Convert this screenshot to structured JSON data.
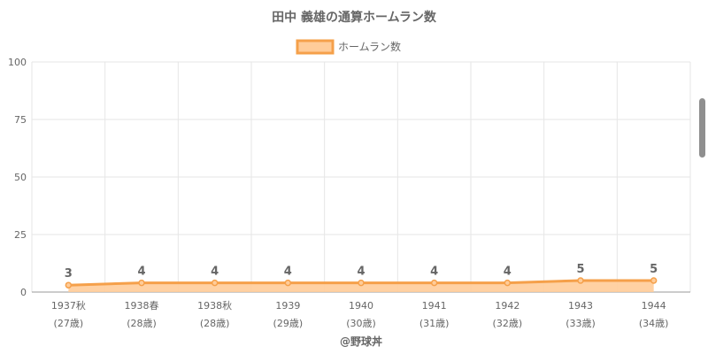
{
  "chart_data": {
    "type": "area",
    "title": "田中 義雄の通算ホームラン数",
    "legend": {
      "label": "ホームラン数",
      "position": "top-center"
    },
    "categories": [
      "1937秋",
      "1938春",
      "1938秋",
      "1939",
      "1940",
      "1941",
      "1942",
      "1943",
      "1944"
    ],
    "ages": [
      "(27歳)",
      "(28歳)",
      "(28歳)",
      "(29歳)",
      "(30歳)",
      "(31歳)",
      "(32歳)",
      "(33歳)",
      "(34歳)"
    ],
    "series": [
      {
        "name": "ホームラン数",
        "values": [
          3,
          4,
          4,
          4,
          4,
          4,
          4,
          5,
          5
        ]
      }
    ],
    "ylim": [
      0,
      100
    ],
    "yticks": [
      0,
      25,
      50,
      75,
      100
    ],
    "ytick_labels": [
      "0",
      "25",
      "50",
      "75",
      "100"
    ],
    "grid": true,
    "colors": {
      "line": "#f5a04a",
      "fill": "#ffcc99",
      "grid": "#e6e6e6",
      "text": "#666666"
    }
  },
  "credit": "@野球丼"
}
